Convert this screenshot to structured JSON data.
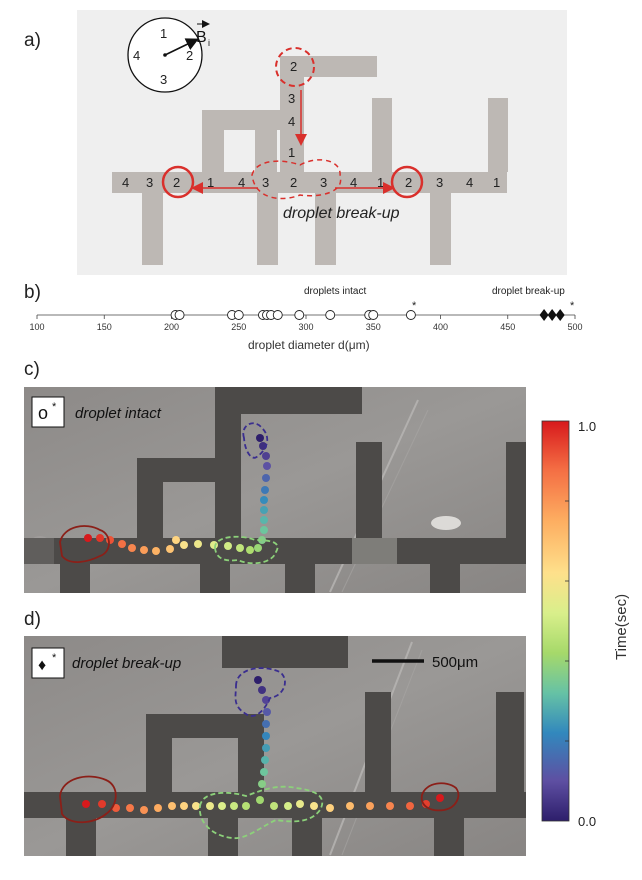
{
  "panels": {
    "a": {
      "letter": "a)",
      "field_label": "B",
      "field_sub": "i",
      "clock": [
        "1",
        "2",
        "3",
        "4"
      ],
      "breakup_label": "droplet break-up",
      "pad_numbers": {
        "top": "2",
        "vertical": [
          "3",
          "4",
          "1"
        ],
        "row": [
          "4",
          "3",
          "2",
          "1",
          "4",
          "3",
          "2",
          "3",
          "4",
          "1",
          "2",
          "3",
          "4",
          "1"
        ]
      }
    },
    "b": {
      "letter": "b)",
      "label_intact": "droplets intact",
      "label_breakup": "droplet break-up",
      "star": "*",
      "star2": "*"
    },
    "c": {
      "letter": "c)",
      "legend_symbol": "o",
      "legend_star": "*",
      "legend_text": "droplet intact"
    },
    "d": {
      "letter": "d)",
      "legend_symbol": "♦",
      "legend_star": "*",
      "legend_text": "droplet break-up",
      "scalebar_label": "500μm"
    }
  },
  "colorbar": {
    "max_label": "1.0",
    "min_label": "0.0",
    "axis_label": "Time(sec)",
    "colors": [
      "#d7191c",
      "#f46d43",
      "#fdae61",
      "#fee08b",
      "#d9ef8b",
      "#a6d96a",
      "#66c2a5",
      "#3288bd",
      "#5e4fa2",
      "#2d1e6b"
    ]
  },
  "chart_data": {
    "type": "scatter",
    "title": "",
    "xlabel": "droplet diameter d(μm)",
    "ylabel": "",
    "xlim": [
      100,
      500
    ],
    "ticks": [
      100,
      150,
      200,
      250,
      300,
      350,
      400,
      450,
      500
    ],
    "series": [
      {
        "name": "droplets intact",
        "marker": "circle",
        "values": [
          203,
          206,
          245,
          250,
          268,
          271,
          274,
          279,
          295,
          318,
          347,
          350,
          378
        ]
      },
      {
        "name": "droplet break-up",
        "marker": "diamond",
        "values": [
          477,
          483,
          489
        ]
      }
    ]
  }
}
